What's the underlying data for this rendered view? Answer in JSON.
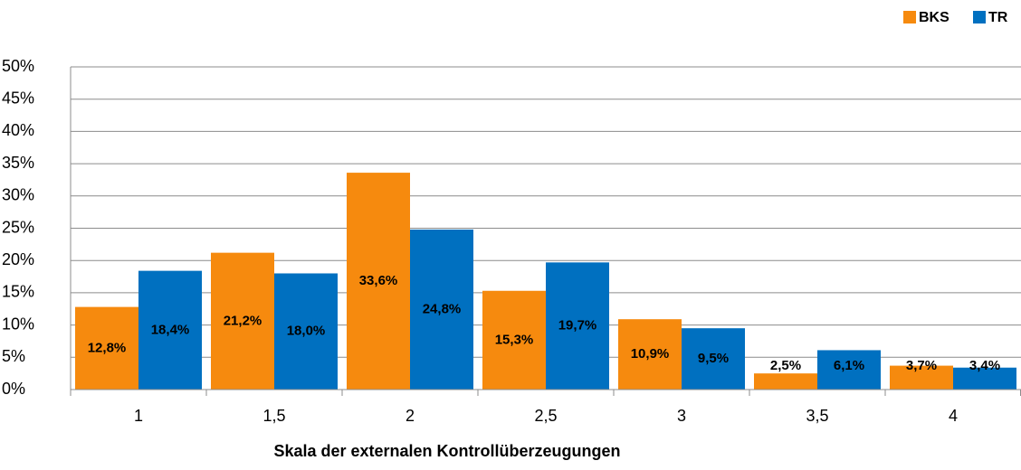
{
  "chart_data": {
    "type": "bar",
    "xlabel": "Skala der externalen Kontrollüberzeugungen",
    "categories": [
      "1",
      "1,5",
      "2",
      "2,5",
      "3",
      "3,5",
      "4"
    ],
    "series": [
      {
        "name": "BKS",
        "color": "#f68a0e",
        "values": [
          12.8,
          21.2,
          33.6,
          15.3,
          10.9,
          2.5,
          3.7
        ],
        "value_labels": [
          "12,8%",
          "21,2%",
          "33,6%",
          "15,3%",
          "10,9%",
          "2,5%",
          "3,7%"
        ]
      },
      {
        "name": "TR",
        "color": "#0070c0",
        "values": [
          18.4,
          18.0,
          24.8,
          19.7,
          9.5,
          6.1,
          3.4
        ],
        "value_labels": [
          "18,4%",
          "18,0%",
          "24,8%",
          "19,7%",
          "9,5%",
          "6,1%",
          "3,4%"
        ]
      }
    ],
    "ylim": [
      0,
      50
    ],
    "yticks": [
      {
        "value": 0,
        "label": "0%"
      },
      {
        "value": 5,
        "label": "5%"
      },
      {
        "value": 10,
        "label": "10%"
      },
      {
        "value": 15,
        "label": "15%"
      },
      {
        "value": 20,
        "label": "20%"
      },
      {
        "value": 25,
        "label": "25%"
      },
      {
        "value": 30,
        "label": "30%"
      },
      {
        "value": 35,
        "label": "35%"
      },
      {
        "value": 40,
        "label": "40%"
      },
      {
        "value": 45,
        "label": "45%"
      },
      {
        "value": 50,
        "label": "50%"
      }
    ],
    "grid": true,
    "legend": "top-right"
  }
}
